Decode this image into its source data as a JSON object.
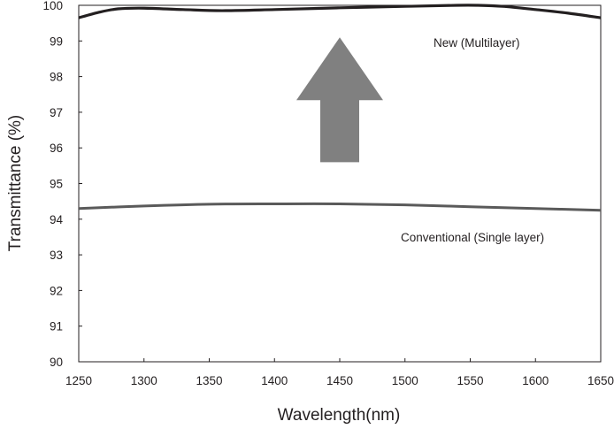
{
  "chart_data": {
    "type": "line",
    "xlabel": "Wavelength(nm)",
    "ylabel": "Transmittance (%)",
    "xlim": [
      1250,
      1650
    ],
    "ylim": [
      90,
      100
    ],
    "xticks": [
      "1250",
      "1300",
      "1350",
      "1400",
      "1450",
      "1500",
      "1550",
      "1600",
      "1650"
    ],
    "yticks": [
      "90",
      "91",
      "92",
      "93",
      "94",
      "95",
      "96",
      "97",
      "98",
      "99",
      "100"
    ],
    "grid": false,
    "annotations": [
      {
        "text": "New (Multilayer)",
        "series": 0
      },
      {
        "text": "Conventional (Single layer)",
        "series": 1
      }
    ],
    "arrow": {
      "direction": "up",
      "color": "#808080",
      "x": 1450,
      "y_from": 95.6,
      "y_to": 99.1
    },
    "series": [
      {
        "color": "#231f20",
        "x": [
          1250,
          1265,
          1280,
          1300,
          1330,
          1360,
          1400,
          1450,
          1500,
          1540,
          1555,
          1575,
          1600,
          1625,
          1650
        ],
        "y": [
          99.65,
          99.8,
          99.9,
          99.92,
          99.88,
          99.85,
          99.88,
          99.93,
          99.97,
          100.0,
          100.0,
          99.97,
          99.88,
          99.78,
          99.65
        ]
      },
      {
        "color": "#5a5a5a",
        "x": [
          1250,
          1300,
          1350,
          1400,
          1450,
          1500,
          1550,
          1600,
          1650
        ],
        "y": [
          94.3,
          94.37,
          94.42,
          94.43,
          94.43,
          94.4,
          94.35,
          94.3,
          94.25
        ]
      }
    ]
  }
}
